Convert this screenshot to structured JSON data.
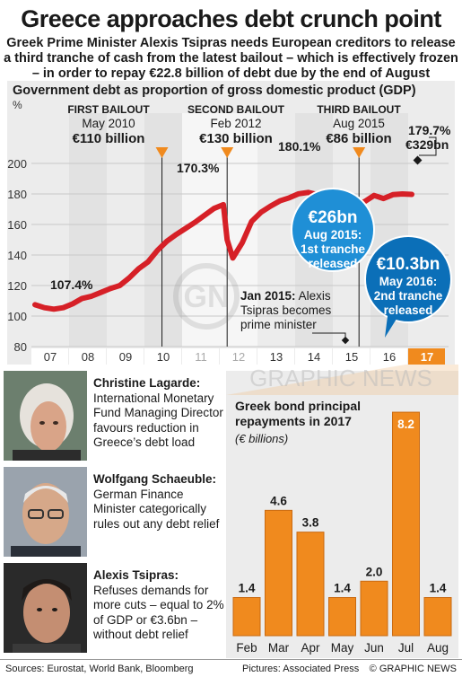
{
  "title": "Greece approaches debt crunch point",
  "subtitle": "Greek Prime Minister Alexis Tsipras needs European creditors to release a third tranche of cash from the latest bailout – which is effectively frozen – in order to repay €22.8 billion of debt due by the end of August",
  "colors": {
    "orange": "#f08a1e",
    "blue": "#1f8fd6",
    "red": "#d62027",
    "dark_blue": "#0b6fb8",
    "panel": "#ececec"
  },
  "chart_data": [
    {
      "type": "line",
      "title": "Government debt as proportion of gross domestic product (GDP)",
      "ylabel": "%",
      "ylim": [
        80,
        200
      ],
      "yticks": [
        80,
        100,
        120,
        140,
        160,
        180,
        200
      ],
      "categories": [
        "07",
        "08",
        "09",
        "10",
        "11",
        "12",
        "13",
        "14",
        "15",
        "16",
        "17"
      ],
      "series": [
        {
          "name": "",
          "x": [
            2007,
            2007.25,
            2007.5,
            2007.75,
            2008,
            2008.25,
            2008.5,
            2008.75,
            2009,
            2009.25,
            2009.5,
            2009.75,
            2010,
            2010.25,
            2010.5,
            2010.75,
            2011,
            2011.25,
            2011.5,
            2011.75,
            2012,
            2012.1,
            2012.25,
            2012.5,
            2012.75,
            2013,
            2013.25,
            2013.5,
            2013.75,
            2014,
            2014.25,
            2014.5,
            2014.75,
            2015,
            2015.25,
            2015.5,
            2015.75,
            2016,
            2016.25,
            2016.5,
            2016.75,
            2017
          ],
          "values": [
            107.4,
            105.5,
            104.5,
            105.5,
            108,
            111.5,
            113,
            115.5,
            118,
            120,
            125,
            131,
            135.5,
            143,
            149,
            153.5,
            157.5,
            161.5,
            166,
            170.5,
            173,
            150,
            138,
            148,
            162,
            168,
            172,
            175.5,
            177.5,
            180.1,
            181,
            179.5,
            181,
            178,
            176.5,
            173,
            175,
            179,
            177,
            179.5,
            180,
            179.7
          ]
        }
      ],
      "annotations": [
        {
          "label": "107.4%"
        },
        {
          "label": "170.3%"
        },
        {
          "label": "180.1%"
        },
        {
          "label": "179.7%",
          "sublabel": "€329bn"
        }
      ],
      "bailouts": [
        {
          "title": "FIRST BAILOUT",
          "date": "May 2010",
          "amount": "€110 billion"
        },
        {
          "title": "SECOND BAILOUT",
          "date": "Feb 2012",
          "amount": "€130 billion"
        },
        {
          "title": "THIRD BAILOUT",
          "date": "Aug 2015",
          "amount": "€86 billion"
        }
      ],
      "tranches": [
        {
          "amount": "€26bn",
          "text": "Aug 2015: 1st tranche released"
        },
        {
          "amount": "€10.3bn",
          "text": "May 2016: 2nd tranche released"
        }
      ],
      "event": {
        "date": "Jan 2015:",
        "text": "Alexis Tsipras becomes prime minister"
      }
    },
    {
      "type": "bar",
      "title": "Greek bond principal repayments in 2017",
      "ylabel": "(€ billions)",
      "categories": [
        "Feb",
        "Mar",
        "Apr",
        "May",
        "Jun",
        "Jul",
        "Aug"
      ],
      "values": [
        1.4,
        4.6,
        3.8,
        1.4,
        2.0,
        8.2,
        1.4
      ],
      "value_labels": [
        "1.4",
        "4.6",
        "3.8",
        "1.4",
        "2.0",
        "8.2",
        "1.4"
      ],
      "ylim": [
        0,
        8.4
      ]
    }
  ],
  "people": [
    {
      "name": "Christine Lagarde:",
      "desc": "International Monetary Fund Managing Director favours reduction in Greece’s debt load"
    },
    {
      "name": "Wolfgang Schaeuble:",
      "desc": "German Finance Minister categorically rules out any debt relief"
    },
    {
      "name": "Alexis Tsipras:",
      "desc": "Refuses demands for more cuts – equal to 2% of GDP or €3.6bn – without debt relief"
    }
  ],
  "watermark": "GRAPHIC NEWS",
  "footer": {
    "sources": "Sources: Eurostat, World Bank, Bloomberg",
    "pictures": "Pictures: Associated Press",
    "credit": "© GRAPHIC NEWS"
  }
}
